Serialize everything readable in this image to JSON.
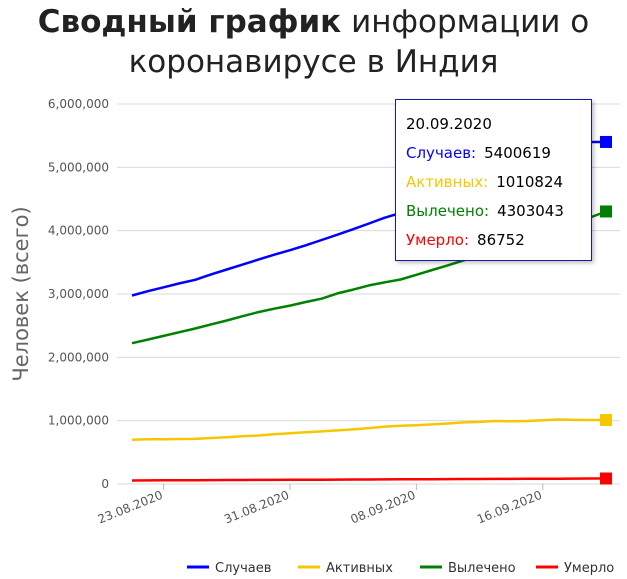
{
  "title": {
    "bold": "Сводный график",
    "rest": " информации о",
    "line2": "коронавирусе в Индия"
  },
  "chart_data": {
    "type": "line",
    "title": "Сводный график информации о коронавирусе в Индия",
    "ylabel": "Человек (всего)",
    "xlabel": "",
    "ylim": [
      0,
      6000000
    ],
    "yticks": [
      "0",
      "1,000,000",
      "2,000,000",
      "3,000,000",
      "4,000,000",
      "5,000,000",
      "6,000,000"
    ],
    "ytick_values": [
      0,
      1000000,
      2000000,
      3000000,
      4000000,
      5000000,
      6000000
    ],
    "x": [
      "21.08.2020",
      "22.08.2020",
      "23.08.2020",
      "24.08.2020",
      "25.08.2020",
      "26.08.2020",
      "27.08.2020",
      "28.08.2020",
      "29.08.2020",
      "30.08.2020",
      "31.08.2020",
      "01.09.2020",
      "02.09.2020",
      "03.09.2020",
      "04.09.2020",
      "05.09.2020",
      "06.09.2020",
      "07.09.2020",
      "08.09.2020",
      "09.09.2020",
      "10.09.2020",
      "11.09.2020",
      "12.09.2020",
      "13.09.2020",
      "14.09.2020",
      "15.09.2020",
      "16.09.2020",
      "17.09.2020",
      "18.09.2020",
      "19.09.2020",
      "20.09.2020"
    ],
    "xticks": [
      "23.08.2020",
      "31.08.2020",
      "08.09.2020",
      "16.09.2020"
    ],
    "grid": true,
    "legend_position": "bottom",
    "series": [
      {
        "name": "Случаев",
        "color": "#0000ff",
        "values": [
          2975701,
          3043436,
          3106348,
          3167323,
          3224547,
          3310234,
          3387500,
          3463972,
          3542733,
          3621245,
          3691166,
          3769523,
          3853406,
          3936747,
          4023179,
          4113811,
          4204613,
          4280422,
          4370128,
          4465863,
          4562414,
          4659984,
          4754356,
          4846427,
          4930236,
          5020359,
          5118253,
          5214677,
          5308014,
          5400619,
          5400619
        ]
      },
      {
        "name": "Активных",
        "color": "#f5c700",
        "values": [
          697330,
          705736,
          707668,
          710771,
          711625,
          725991,
          739590,
          752424,
          765302,
          785996,
          801282,
          815538,
          830394,
          846395,
          862320,
          882542,
          906285,
          919018,
          926400,
          940705,
          955733,
          973175,
          981138,
          994348,
          990061,
          994370,
          1006087,
          1017754,
          1012860,
          1010824,
          1010824
        ]
      },
      {
        "name": "Вылечено",
        "color": "#008000",
        "values": [
          2222577,
          2280566,
          2338035,
          2396637,
          2455101,
          2520733,
          2582229,
          2648998,
          2713933,
          2768318,
          2817090,
          2873442,
          2926428,
          3009221,
          3069150,
          3135451,
          3184469,
          3229638,
          3303103,
          3378438,
          3452768,
          3531347,
          3619293,
          3692016,
          3775052,
          3859399,
          3942360,
          4025079,
          4110478,
          4208431,
          4303043
        ]
      },
      {
        "name": "Умерло",
        "color": "#ff0000",
        "values": [
          55794,
          57134,
          58390,
          59449,
          60472,
          61529,
          62550,
          63498,
          64469,
          65288,
          66333,
          67376,
          68472,
          69561,
          70626,
          71642,
          72775,
          73890,
          75062,
          76271,
          77472,
          78586,
          79722,
          80776,
          81037,
          82066,
          83198,
          84372,
          85619,
          86752,
          86752
        ]
      }
    ],
    "tooltip": {
      "date": "20.09.2020",
      "rows": [
        {
          "label": "Случаев:",
          "value": "5400619",
          "color": "#0000ff"
        },
        {
          "label": "Активных:",
          "value": "1010824",
          "color": "#f5c700"
        },
        {
          "label": "Вылечено:",
          "value": "4303043",
          "color": "#008000"
        },
        {
          "label": "Умерло:",
          "value": "86752",
          "color": "#ff0000"
        }
      ]
    }
  }
}
